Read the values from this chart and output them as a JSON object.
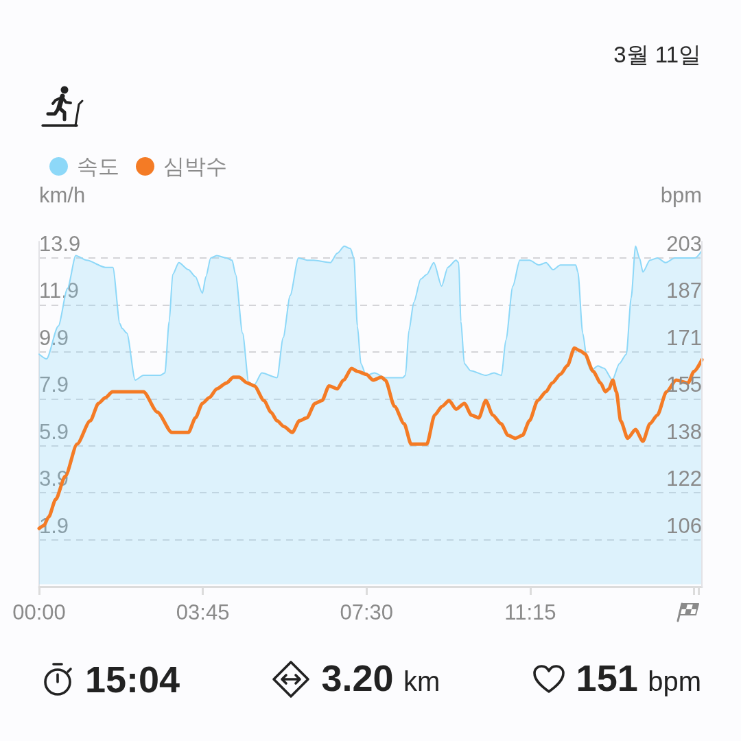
{
  "chart_data": {
    "type": "line",
    "subtitle": "3월 11일",
    "ylabel": "km/h",
    "y2label": "bpm",
    "xlim": [
      0,
      15.18
    ],
    "xticks": [
      {
        "value": 0,
        "label": "00:00"
      },
      {
        "value": 3.75,
        "label": "03:45"
      },
      {
        "value": 7.5,
        "label": "07:30"
      },
      {
        "value": 11.25,
        "label": "11:15"
      },
      {
        "value": 15,
        "label": null
      },
      {
        "value": 15.1,
        "label": null
      }
    ],
    "ylim": [
      -0.1,
      14.6
    ],
    "yticks": [
      1.9,
      3.9,
      5.9,
      7.9,
      9.9,
      11.9,
      13.9
    ],
    "y2lim": [
      90,
      208.65
    ],
    "y2ticks": [
      {
        "value": 106.1,
        "label": "106"
      },
      {
        "value": 122.3,
        "label": "122"
      },
      {
        "value": 138.4,
        "label": "138"
      },
      {
        "value": 154.6,
        "label": "155"
      },
      {
        "value": 170.7,
        "label": "171"
      },
      {
        "value": 186.9,
        "label": "187"
      },
      203
    ],
    "grid": "y",
    "legend": "top left",
    "marker": "none",
    "series": [
      {
        "name": "속도",
        "type": "area",
        "color": "#8dd8f8",
        "x": [
          0,
          0.17,
          0.44,
          0.65,
          0.84,
          1.09,
          1.52,
          1.69,
          1.85,
          1.9,
          2.01,
          2.2,
          2.39,
          2.77,
          2.88,
          2.98,
          3.06,
          3.2,
          3.42,
          3.58,
          3.74,
          3.82,
          3.93,
          4.07,
          4.29,
          4.42,
          4.5,
          4.66,
          4.8,
          4.93,
          5.1,
          5.45,
          5.59,
          5.75,
          5.94,
          6.15,
          6.29,
          6.67,
          6.83,
          6.99,
          7.13,
          7.21,
          7.29,
          7.37,
          7.49,
          7.68,
          7.93,
          8.33,
          8.39,
          8.47,
          8.58,
          8.74,
          8.88,
          9.04,
          9.22,
          9.36,
          9.55,
          9.61,
          9.66,
          9.74,
          9.88,
          10.23,
          10.42,
          10.59,
          10.69,
          10.85,
          11.01,
          11.23,
          11.45,
          11.61,
          11.77,
          11.94,
          12.29,
          12.34,
          12.45,
          12.56,
          12.64,
          12.8,
          12.94,
          13.13,
          13.29,
          13.45,
          13.56,
          13.66,
          13.75,
          13.83,
          13.99,
          14.16,
          14.35,
          14.56,
          15.02,
          15.18
        ],
        "values": [
          9.8,
          9.6,
          11.0,
          12.6,
          14.0,
          13.8,
          13.5,
          13.5,
          11.1,
          10.9,
          10.7,
          8.7,
          8.9,
          8.9,
          9.0,
          11.2,
          13.2,
          13.7,
          13.4,
          13.1,
          12.4,
          13.1,
          13.9,
          14.0,
          13.9,
          13.8,
          13.2,
          10.7,
          8.6,
          8.5,
          9.0,
          8.8,
          10.5,
          12.3,
          13.9,
          13.8,
          13.8,
          13.7,
          14.1,
          14.4,
          14.3,
          13.9,
          11.0,
          9.4,
          8.9,
          9.0,
          8.8,
          8.8,
          8.9,
          10.8,
          12.0,
          13.0,
          13.2,
          13.7,
          12.7,
          13.5,
          13.8,
          13.7,
          11.2,
          9.4,
          9.1,
          8.9,
          9.0,
          8.9,
          10.4,
          12.7,
          13.8,
          13.8,
          13.6,
          13.7,
          13.4,
          13.6,
          13.6,
          13.3,
          10.7,
          9.4,
          9.1,
          9.3,
          9.2,
          8.7,
          9.4,
          9.8,
          12.2,
          14.4,
          13.9,
          13.3,
          13.8,
          13.9,
          13.7,
          13.9,
          13.9,
          14.2
        ]
      },
      {
        "name": "심박수",
        "color": "#f47b25",
        "axis": "y2",
        "x": [
          0,
          0.11,
          0.22,
          0.38,
          0.6,
          0.87,
          1.17,
          1.36,
          1.52,
          1.68,
          2.39,
          2.71,
          3.04,
          3.42,
          3.58,
          3.74,
          3.9,
          4.07,
          4.29,
          4.45,
          4.58,
          4.77,
          4.93,
          5.15,
          5.31,
          5.45,
          5.61,
          5.8,
          5.96,
          6.13,
          6.32,
          6.48,
          6.64,
          6.83,
          6.97,
          7.16,
          7.29,
          7.49,
          7.65,
          7.84,
          7.93,
          8.14,
          8.36,
          8.52,
          8.88,
          9.06,
          9.23,
          9.39,
          9.55,
          9.74,
          9.9,
          10.07,
          10.23,
          10.39,
          10.58,
          10.74,
          10.91,
          11.07,
          11.23,
          11.42,
          11.61,
          11.75,
          11.94,
          12.1,
          12.26,
          12.4,
          12.5,
          12.69,
          12.86,
          12.97,
          13.05,
          13.14,
          13.22,
          13.32,
          13.48,
          13.66,
          13.83,
          13.99,
          14.16,
          14.37,
          14.59,
          14.86,
          15.0,
          15.18
        ],
        "values": [
          110,
          111,
          114,
          120,
          128,
          139,
          147,
          153,
          155,
          157,
          157,
          150,
          143,
          143,
          148,
          153,
          155,
          158,
          160,
          162,
          162,
          160,
          159,
          154,
          150,
          147,
          145,
          143,
          147,
          148,
          153,
          154,
          159,
          158,
          161,
          165,
          164,
          163,
          161,
          162,
          161,
          152,
          146,
          139,
          139,
          149,
          152,
          154,
          151,
          153,
          149,
          148,
          154,
          149,
          146,
          142,
          141,
          142,
          147,
          154,
          157,
          160,
          163,
          166,
          172,
          171,
          170,
          164,
          160,
          157,
          158,
          161,
          157,
          147,
          141,
          144,
          140,
          146,
          149,
          157,
          161,
          160,
          164,
          168
        ]
      }
    ],
    "annotations": [
      "15:04",
      "3.20 km",
      "151 bpm"
    ]
  }
}
